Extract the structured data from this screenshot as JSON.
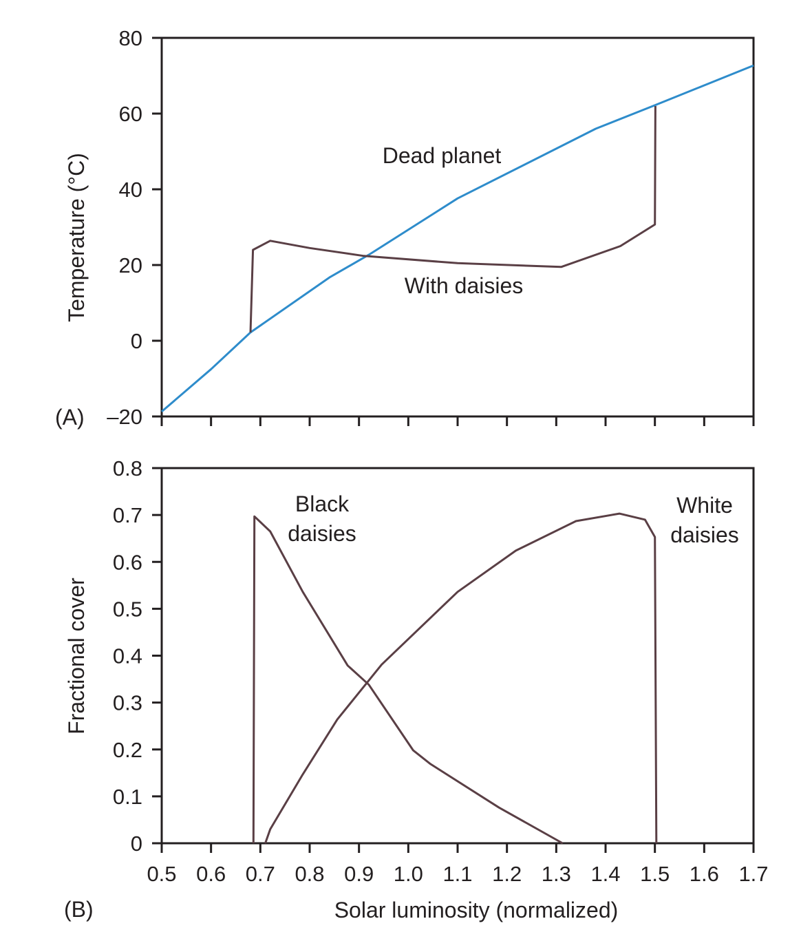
{
  "colors": {
    "dead_planet": "#2e8ccb",
    "daisies": "#5a3f45",
    "axis": "#231f20"
  },
  "chart_data": [
    {
      "type": "line",
      "panel_label": "(A)",
      "xlabel": "",
      "ylabel": "Temperature (°C)",
      "xlim": [
        0.5,
        1.7
      ],
      "ylim": [
        -20,
        80
      ],
      "xticks": [
        0.5,
        0.6,
        0.7,
        0.8,
        0.9,
        1.0,
        1.1,
        1.2,
        1.3,
        1.4,
        1.5,
        1.6,
        1.7
      ],
      "yticks": [
        -20,
        0,
        20,
        40,
        60,
        80
      ],
      "ytick_labels": [
        "–20",
        "0",
        "20",
        "40",
        "60",
        "80"
      ],
      "grid": false,
      "series": [
        {
          "name": "Dead planet",
          "color": "#2e8ccb",
          "x": [
            0.5,
            0.6,
            0.68,
            0.84,
            0.92,
            1.1,
            1.38,
            1.5,
            1.7
          ],
          "y": [
            -18.7,
            -7.5,
            2.2,
            16.7,
            22.7,
            37.6,
            56,
            62.2,
            72.7
          ]
        },
        {
          "name": "With daisies",
          "color": "#5a3f45",
          "x": [
            0.68,
            0.685,
            0.72,
            0.8,
            0.91,
            1.1,
            1.31,
            1.43,
            1.5,
            1.501
          ],
          "y": [
            2.2,
            24,
            26.4,
            24.5,
            22.4,
            20.5,
            19.5,
            25,
            30.7,
            62
          ]
        }
      ]
    },
    {
      "type": "line",
      "panel_label": "(B)",
      "xlabel": "Solar luminosity (normalized)",
      "ylabel": "Fractional cover",
      "xlim": [
        0.5,
        1.7
      ],
      "ylim": [
        0,
        0.8
      ],
      "xticks": [
        0.5,
        0.6,
        0.7,
        0.8,
        0.9,
        1.0,
        1.1,
        1.2,
        1.3,
        1.4,
        1.5,
        1.6,
        1.7
      ],
      "xtick_labels": [
        "0.5",
        "0.6",
        "0.7",
        "0.8",
        "0.9",
        "1.0",
        "1.1",
        "1.2",
        "1.3",
        "1.4",
        "1.5",
        "1.6",
        "1.7"
      ],
      "yticks": [
        0,
        0.1,
        0.2,
        0.3,
        0.4,
        0.5,
        0.6,
        0.7,
        0.8
      ],
      "ytick_labels": [
        "0",
        "0.1",
        "0.2",
        "0.3",
        "0.4",
        "0.5",
        "0.6",
        "0.7",
        "0.8"
      ],
      "grid": false,
      "series": [
        {
          "name": "Black daisies",
          "label_lines": [
            "Black",
            "daisies"
          ],
          "color": "#5a3f45",
          "x": [
            0.686,
            0.688,
            0.72,
            0.786,
            0.877,
            0.92,
            1.01,
            1.045,
            1.184,
            1.313
          ],
          "y": [
            0,
            0.697,
            0.665,
            0.536,
            0.379,
            0.338,
            0.198,
            0.169,
            0.076,
            0
          ]
        },
        {
          "name": "White daisies",
          "label_lines": [
            "White",
            "daisies"
          ],
          "color": "#5a3f45",
          "x": [
            0.71,
            0.72,
            0.786,
            0.856,
            0.946,
            1.1,
            1.218,
            1.34,
            1.428,
            1.48,
            1.5,
            1.503
          ],
          "y": [
            0,
            0.03,
            0.147,
            0.264,
            0.381,
            0.536,
            0.624,
            0.687,
            0.703,
            0.69,
            0.653,
            0
          ]
        }
      ]
    }
  ]
}
